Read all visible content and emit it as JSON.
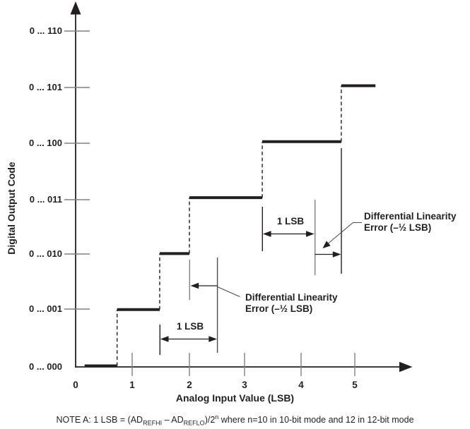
{
  "figure": {
    "y_axis": {
      "label": "Digital Output Code",
      "tick_labels": [
        "0 ... 110",
        "0 ... 101",
        "0 ... 100",
        "0 ... 011",
        "0 ... 010",
        "0 ... 001",
        "0 ... 000"
      ]
    },
    "x_axis": {
      "label": "Analog Input Value (LSB)",
      "tick_labels": [
        "0",
        "1",
        "2",
        "3",
        "4",
        "5"
      ]
    },
    "annotations": {
      "lower": {
        "lsb": "1 LSB",
        "line1": "Differential Linearity",
        "line2": "Error (–½ LSB)"
      },
      "upper": {
        "lsb": "1 LSB",
        "line1": "Differential Linearity",
        "line2": "Error (–½ LSB)"
      }
    },
    "note": {
      "prefix": "NOTE A:  1 LSB = (AD",
      "sub1": "REFHI",
      "mid1": " – AD",
      "sub2": "REFLO",
      "mid2": ")/2",
      "sup": "n",
      "suffix": " where n=10 in 10-bit mode and 12 in 12-bit mode"
    },
    "colors": {
      "ink": "#231f20",
      "gray_lines": "#808080"
    }
  },
  "chart_data": {
    "type": "line",
    "title": "ADC staircase transfer function with differential linearity error",
    "xlabel": "Analog Input Value (LSB)",
    "ylabel": "Digital Output Code",
    "x_ticks": [
      0,
      1,
      2,
      3,
      4,
      5
    ],
    "y_codes": [
      "0 ... 000",
      "0 ... 001",
      "0 ... 010",
      "0 ... 011",
      "0 ... 100",
      "0 ... 101",
      "0 ... 110"
    ],
    "steps": [
      {
        "code": "0 ... 000",
        "level": 0,
        "x_start": 0.16,
        "x_end": 0.74
      },
      {
        "code": "0 ... 001",
        "level": 1,
        "x_start": 0.74,
        "x_end": 1.5
      },
      {
        "code": "0 ... 010",
        "level": 2,
        "x_start": 1.5,
        "x_end": 2.03
      },
      {
        "code": "0 ... 011",
        "level": 3,
        "x_start": 2.03,
        "x_end": 3.33
      },
      {
        "code": "0 ... 100",
        "level": 4,
        "x_start": 3.33,
        "x_end": 4.74
      },
      {
        "code": "0 ... 101",
        "level": 5,
        "x_start": 4.74,
        "x_end": 5.35
      }
    ],
    "ideal_step_width_lsb": 1,
    "annotated_dnl_error_lsb": -0.5,
    "ideal_span_lower_lsb": [
      1.5,
      2.53
    ],
    "ideal_span_upper_lsb": [
      3.33,
      4.27
    ],
    "grid": false,
    "legend": false
  }
}
